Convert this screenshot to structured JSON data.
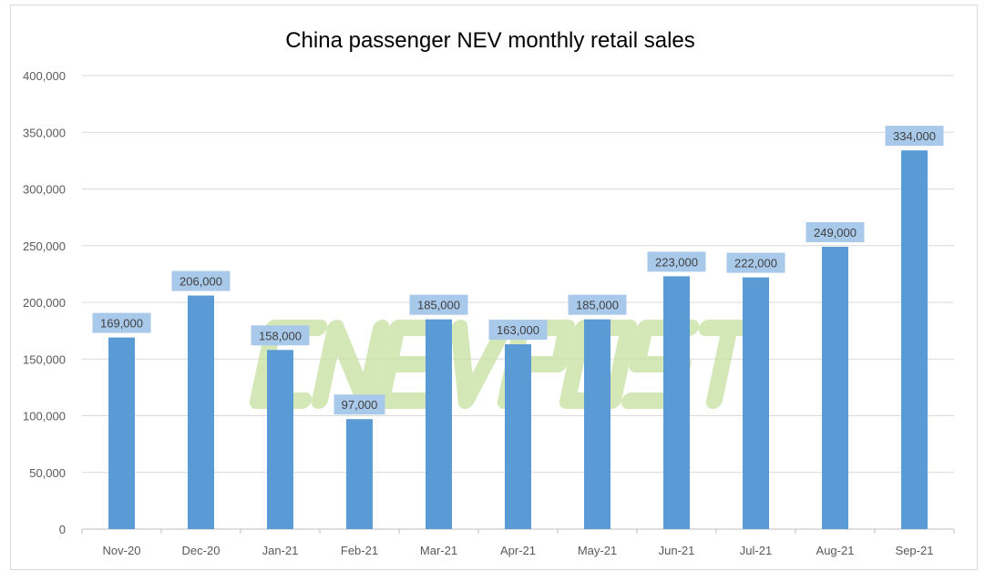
{
  "chart_data": {
    "type": "bar",
    "title": "China passenger NEV monthly retail sales",
    "xlabel": "",
    "ylabel": "",
    "categories": [
      "Nov-20",
      "Dec-20",
      "Jan-21",
      "Feb-21",
      "Mar-21",
      "Apr-21",
      "May-21",
      "Jun-21",
      "Jul-21",
      "Aug-21",
      "Sep-21"
    ],
    "values": [
      169000,
      206000,
      158000,
      97000,
      185000,
      163000,
      185000,
      223000,
      222000,
      249000,
      334000
    ],
    "data_labels": [
      "169,000",
      "206,000",
      "158,000",
      "97,000",
      "185,000",
      "163,000",
      "185,000",
      "223,000",
      "222,000",
      "249,000",
      "334,000"
    ],
    "ylim": [
      0,
      400000
    ],
    "yticks": [
      0,
      50000,
      100000,
      150000,
      200000,
      250000,
      300000,
      350000,
      400000
    ],
    "ytick_labels": [
      "0",
      "50,000",
      "100,000",
      "150,000",
      "200,000",
      "250,000",
      "300,000",
      "350,000",
      "400,000"
    ],
    "grid": true,
    "legend": "none",
    "colors": {
      "bar": "#5b9bd5",
      "label_bg": "#a9c9ea",
      "grid": "#d9d9d9",
      "watermark": "#c6e0a0"
    }
  },
  "watermark": "CNEVPOST"
}
